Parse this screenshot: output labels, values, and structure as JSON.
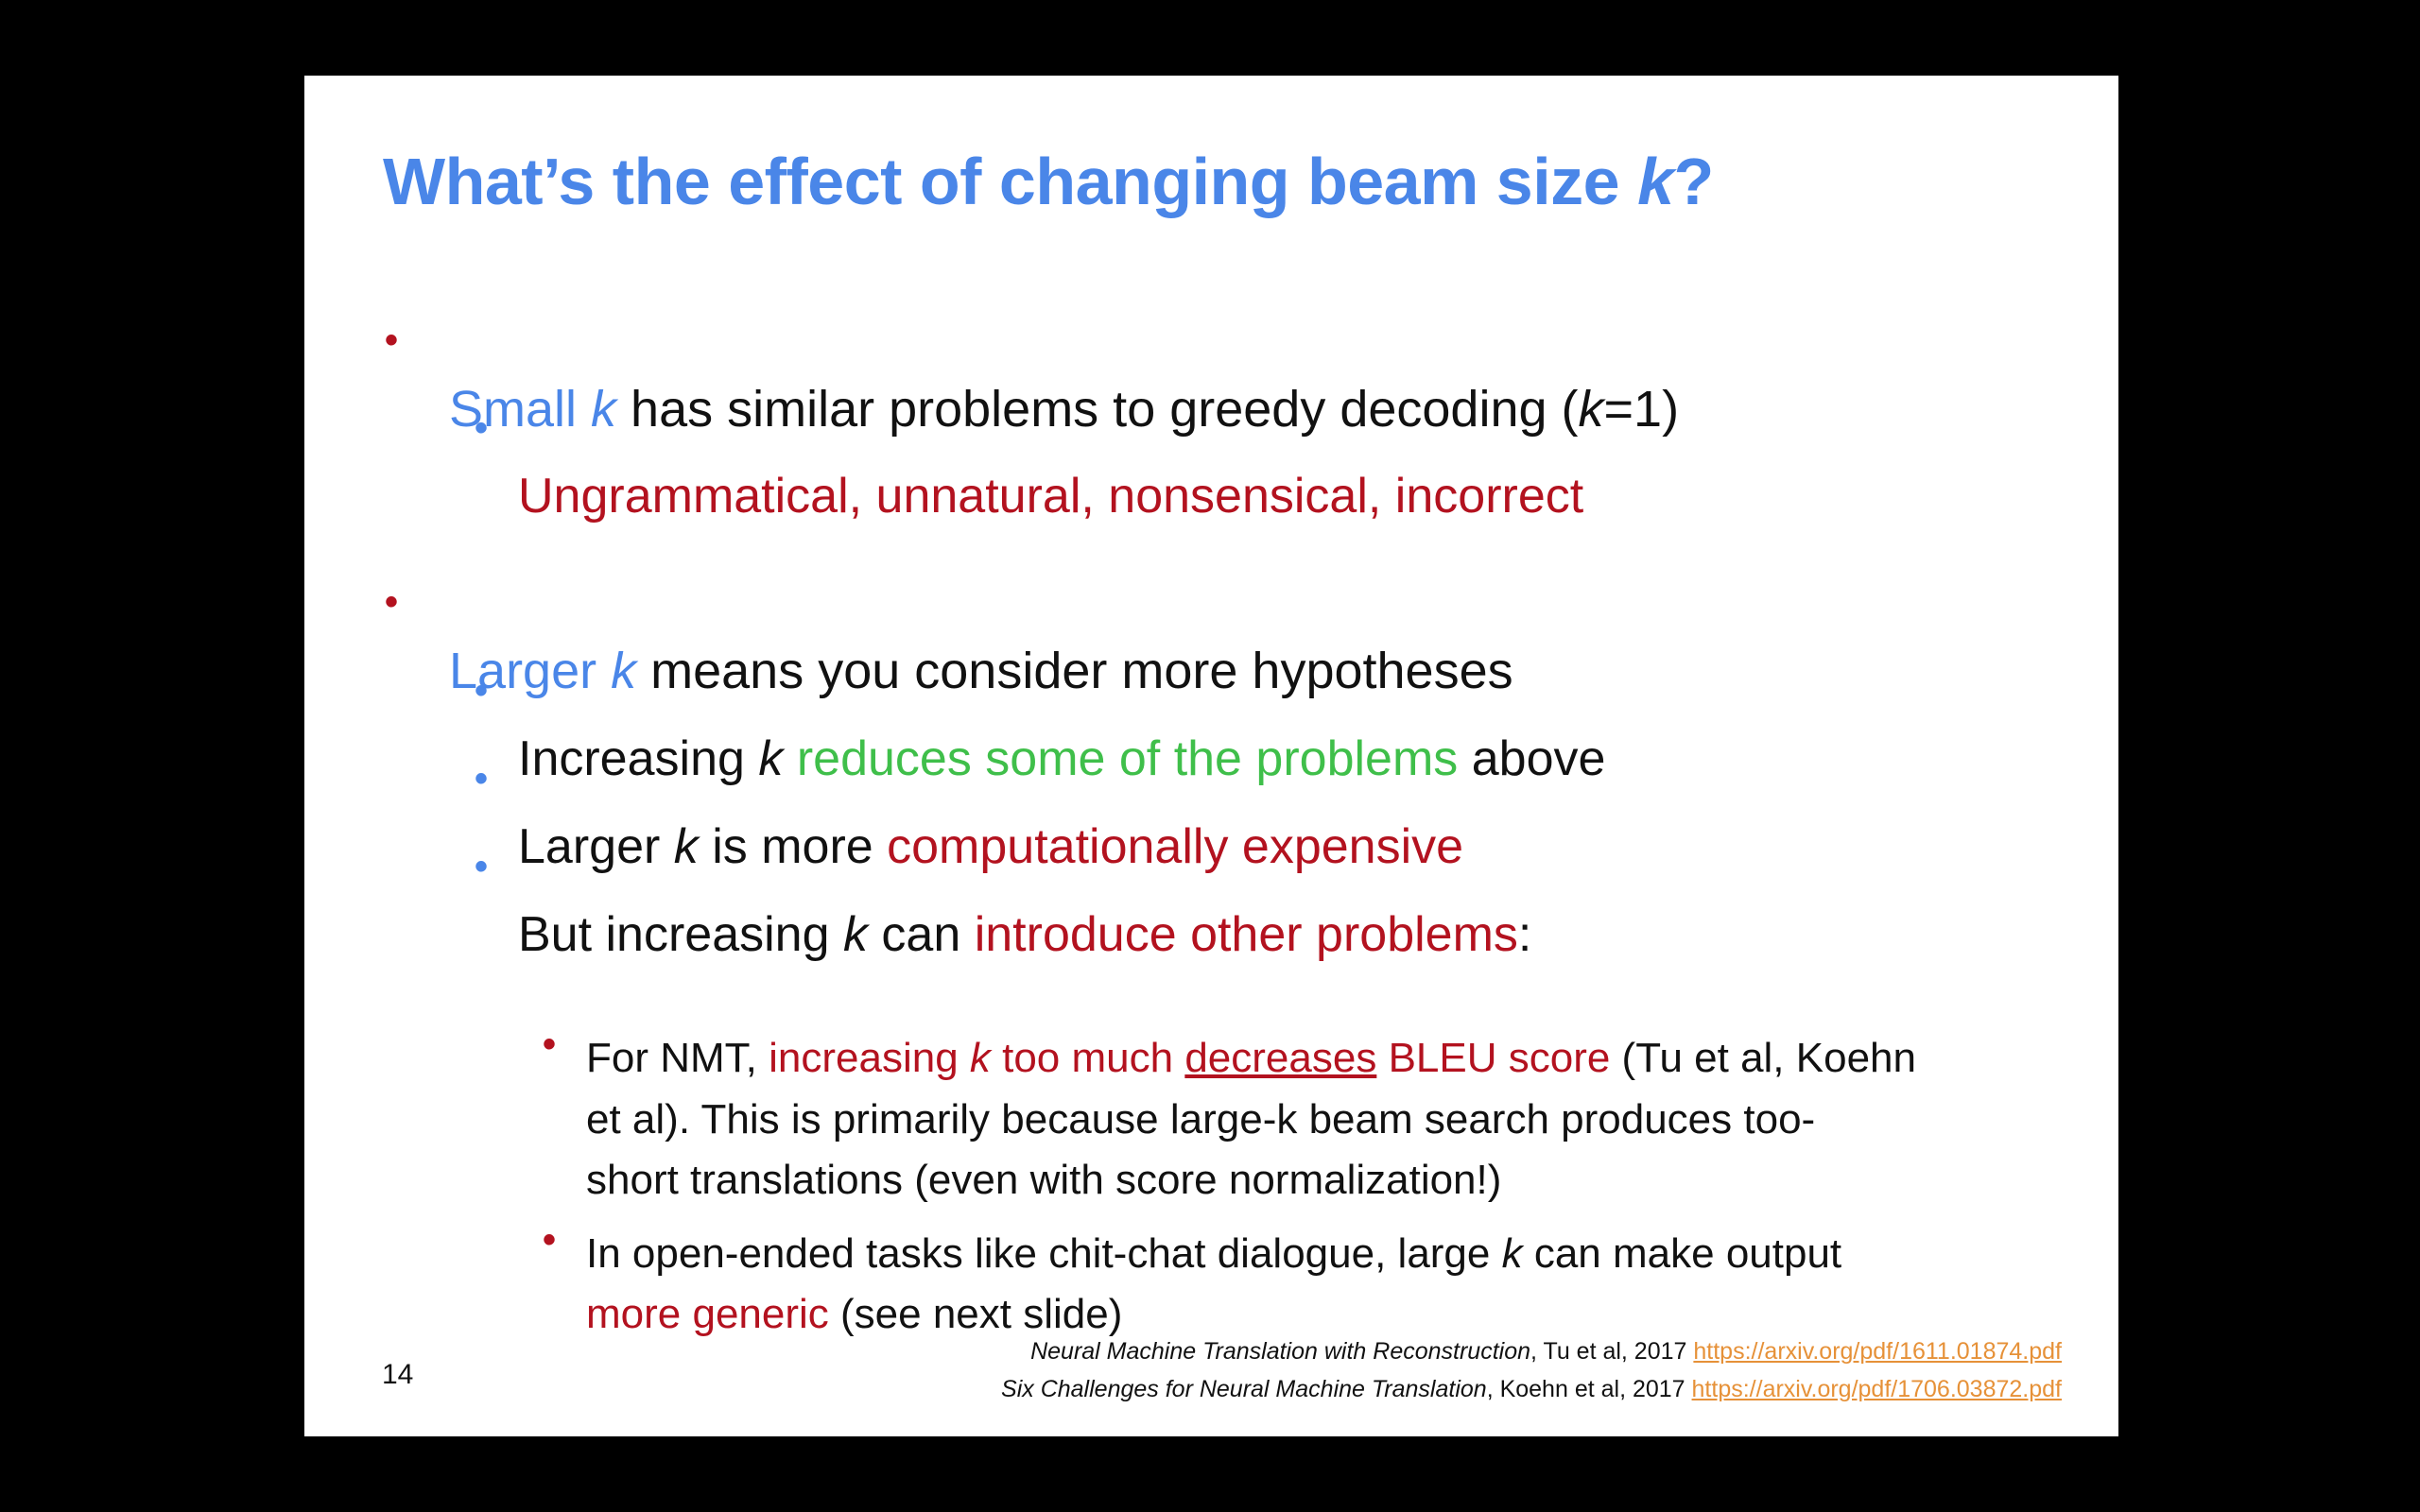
{
  "slide": {
    "title": {
      "before": "What’s the effect of changing beam size ",
      "var": "k",
      "after": "?"
    },
    "bullets": [
      {
        "lead": "Small ",
        "var": "k",
        "rest": " has similar problems to greedy decoding (",
        "var2": "k",
        "tail": "=1)"
      },
      {
        "text": "Ungrammatical, unnatural, nonsensical, incorrect"
      },
      {
        "lead": "Larger ",
        "var": "k",
        "rest": " means you consider more hypotheses"
      },
      {
        "a": "Increasing ",
        "var": "k",
        "b": " ",
        "highlight": "reduces some of the problems",
        "c": " above"
      },
      {
        "a": "Larger ",
        "var": "k",
        "b": " is more ",
        "highlight": "computationally expensive"
      },
      {
        "a": "But increasing ",
        "var": "k",
        "b": " can ",
        "highlight": "introduce other problems",
        "c": ":"
      },
      {
        "line1": {
          "a": "For NMT, ",
          "r1": "increasing ",
          "var": "k",
          "r2": " too much ",
          "under": "decreases",
          "r3": " BLEU score",
          "b": " (Tu et al, Koehn"
        },
        "line2": "et al). This is primarily because large-k beam search produces too-",
        "line3": "short translations (even with score normalization!)"
      },
      {
        "line1": {
          "a": "In open-ended tasks like chit-chat dialogue, large ",
          "var": "k",
          "b": " can make output"
        },
        "line2": {
          "highlight": "more generic",
          "b": " (see next slide)"
        }
      }
    ],
    "page_number": "14",
    "references": [
      {
        "title": "Neural Machine Translation with Reconstruction",
        "authors": ", Tu et al, 2017 ",
        "url": "https://arxiv.org/pdf/1611.01874.pdf"
      },
      {
        "title": "Six Challenges for Neural Machine Translation",
        "authors": ", Koehn et al, 2017 ",
        "url": "https://arxiv.org/pdf/1706.03872.pdf"
      }
    ],
    "colors": {
      "title": "#4a86e8",
      "emphasis_red": "#b3121f",
      "emphasis_green": "#3fbf4a",
      "link": "#e69138",
      "background": "#ffffff",
      "frame": "#000000"
    }
  }
}
